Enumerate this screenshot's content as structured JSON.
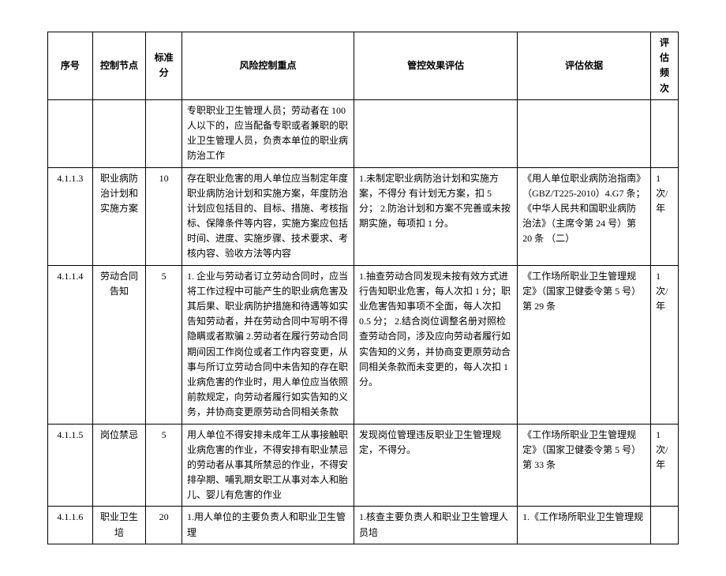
{
  "headers": {
    "seq": "序号",
    "node": "控制节点",
    "std": "标准分",
    "risk": "风险控制重点",
    "eval": "管控效果评估",
    "basis": "评估依据",
    "freq": "评估频次"
  },
  "rows": [
    {
      "seq": "",
      "node": "",
      "std": "",
      "risk": "专职职业卫生管理人员；劳动者在 100 人以下的，应当配备专职或者兼职的职业卫生管理人员，负责本单位的职业病防治工作",
      "eval": "",
      "basis": "",
      "freq": ""
    },
    {
      "seq": "4.1.1.3",
      "node": "职业病防治计划和实施方案",
      "std": "10",
      "risk": "存在职业危害的用人单位应当制定年度职业病防治计划和实施方案，年度防治计划应包括目的、目标、措施、考核指标、保障条件等内容，实施方案应包括时间、进度、实施步骤、技术要求、考核内容、验收方法等内容",
      "eval": "1.未制定职业病防治计划和实施方案，不得分 有计划无方案，扣 5 分；\n2.防治计划和方案不完善或未按期实施，每项扣 1 分。",
      "basis": "《用人单位职业病防治指南》（GBZ/T225-2010）4.G7 条；《中华人民共和国职业病防治法》（主席令第 24 号）第 20 条\n（二）",
      "freq": "1 次/年"
    },
    {
      "seq": "4.1.1.4",
      "node": "劳动合同告知",
      "std": "5",
      "risk": "1. 企业与劳动者订立劳动合同时，应当将工作过程中可能产生的职业病危害及其后果、职业病防护措施和待遇等如实告知劳动者，并在劳动合同中写明不得隐瞒或者欺骗 2.劳动者在履行劳动合同期间因工作岗位或者工作内容变更，从事与所订立劳动合同中未告知的存在职业病危害的作业时，用人单位应当依照前款规定，向劳动者履行如实告知的义务，并协商变更原劳动合同相关条款",
      "eval": "1.抽查劳动合同发现未按有效方式进行告知职业危害，每人次扣 1 分；职业危害告知事项不全面，每人次扣 0.5 分；\n2.结合岗位调整名册对照检查劳动合同，涉及应向劳动者履行如实告知的义务，并协商变更原劳动合同相关条款而未变更的，每人次扣 1 分。",
      "basis": "《工作场所职业卫生管理规定》（国家卫健委令第 5 号）第 29 条",
      "freq": "1 次/年"
    },
    {
      "seq": "4.1.1.5",
      "node": "岗位禁忌",
      "std": "5",
      "risk": "用人单位不得安排未成年工从事接触职业病危害的作业，不得安排有职业禁忌的劳动者从事其所禁忌的作业，不得安排孕期、哺乳期女职工从事对本人和胎儿、婴儿有危害的作业",
      "eval": "发现岗位管理违反职业卫生管理规定，不得分。",
      "basis": "《工作场所职业卫生管理规定》（国家卫健委令第 5 号）第 33 条",
      "freq": "1 次/年"
    },
    {
      "seq": "4.1.1.6",
      "node": "职业卫生培",
      "std": "20",
      "risk": "1.用人单位的主要负责人和职业卫生管理",
      "eval": "1.核查主要负责人和职业卫生管理人员培",
      "basis": "1.《工作场所职业卫生管理规",
      "freq": ""
    }
  ]
}
